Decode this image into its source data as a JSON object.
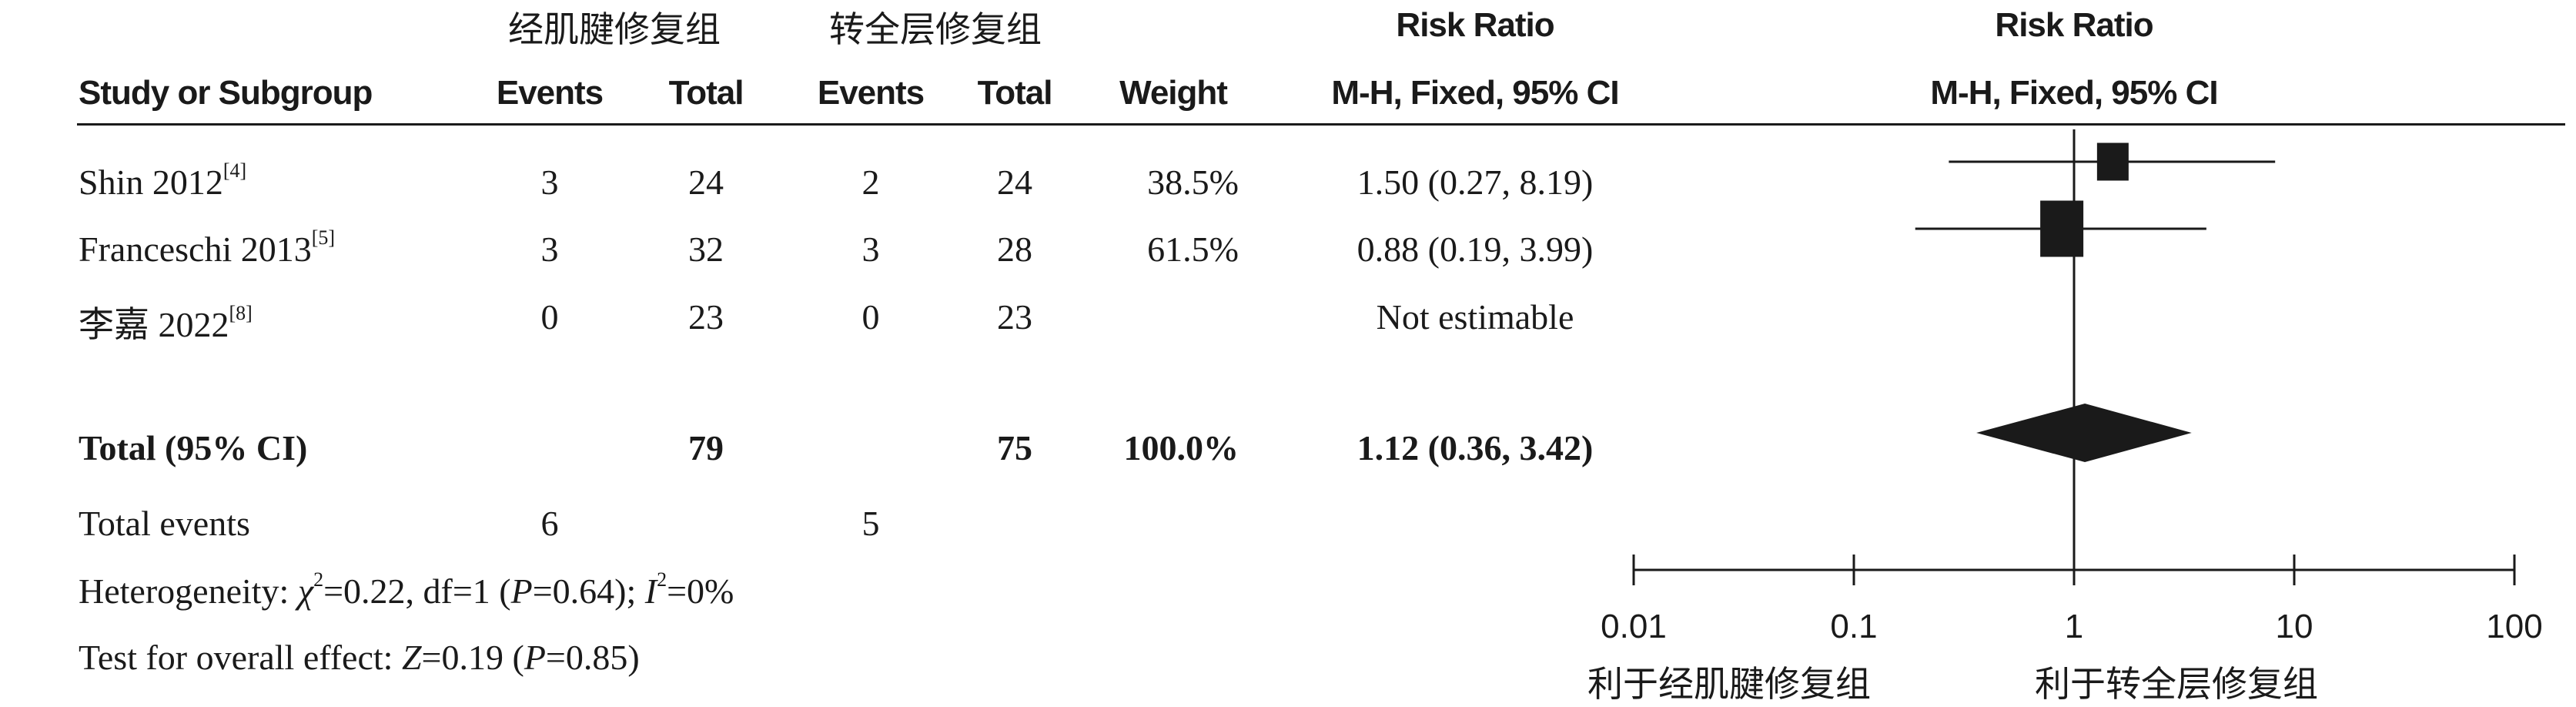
{
  "header": {
    "group_exp": "经肌腱修复组",
    "group_ctrl": "转全层修复组",
    "rr_title_table": "Risk Ratio",
    "rr_title_plot": "Risk Ratio",
    "col_study": "Study or Subgroup",
    "col_events_exp": "Events",
    "col_total_exp": "Total",
    "col_events_ctrl": "Events",
    "col_total_ctrl": "Total",
    "col_weight": "Weight",
    "col_ci_table": "M-H, Fixed, 95% CI",
    "col_ci_plot": "M-H, Fixed, 95% CI"
  },
  "studies": [
    {
      "name": "Shin 2012",
      "ref": "[4]",
      "events_exp": "3",
      "total_exp": "24",
      "events_ctrl": "2",
      "total_ctrl": "24",
      "weight": "38.5%",
      "ci": "1.50 (0.27, 8.19)"
    },
    {
      "name": "Franceschi 2013",
      "ref": "[5]",
      "events_exp": "3",
      "total_exp": "32",
      "events_ctrl": "3",
      "total_ctrl": "28",
      "weight": "61.5%",
      "ci": "0.88 (0.19, 3.99)"
    },
    {
      "name": "李嘉 2022",
      "ref": "[8]",
      "events_exp": "0",
      "total_exp": "23",
      "events_ctrl": "0",
      "total_ctrl": "23",
      "weight": "",
      "ci": "Not estimable"
    }
  ],
  "total": {
    "label": "Total (95% CI)",
    "total_exp": "79",
    "total_ctrl": "75",
    "weight": "100.0%",
    "ci": "1.12 (0.36, 3.42)"
  },
  "total_events": {
    "label": "Total events",
    "exp": "6",
    "ctrl": "5"
  },
  "heterogeneity": {
    "prefix": "Heterogeneity: ",
    "chi": "χ",
    "chi_sup": "2",
    "chi_rest": "=0.22, df=1 (",
    "p": "P",
    "p_rest": "=0.64); ",
    "i": "I",
    "i_sup": "2",
    "i_rest": "=0%"
  },
  "overall": {
    "prefix": "Test for overall effect: ",
    "z": "Z",
    "z_rest": "=0.19 (",
    "p": "P",
    "p_rest": "=0.85)"
  },
  "axis": {
    "favours_left": "利于经肌腱修复组",
    "favours_right": "利于转全层修复组"
  },
  "chart_data": {
    "type": "forest",
    "x_scale": "log",
    "xlim": [
      0.01,
      100
    ],
    "ticks": [
      0.01,
      0.1,
      1,
      10,
      100
    ],
    "tick_labels": [
      "0.01",
      "0.1",
      "1",
      "10",
      "100"
    ],
    "reference_line": 1,
    "studies": [
      {
        "name": "Shin 2012",
        "rr": 1.5,
        "lower": 0.27,
        "upper": 8.19,
        "weight": 38.5
      },
      {
        "name": "Franceschi 2013",
        "rr": 0.88,
        "lower": 0.19,
        "upper": 3.99,
        "weight": 61.5
      },
      {
        "name": "李嘉 2022",
        "rr": null,
        "lower": null,
        "upper": null,
        "weight": null
      }
    ],
    "pooled": {
      "rr": 1.12,
      "lower": 0.36,
      "upper": 3.42
    },
    "colors": {
      "marker": "#1a1a1a"
    }
  }
}
